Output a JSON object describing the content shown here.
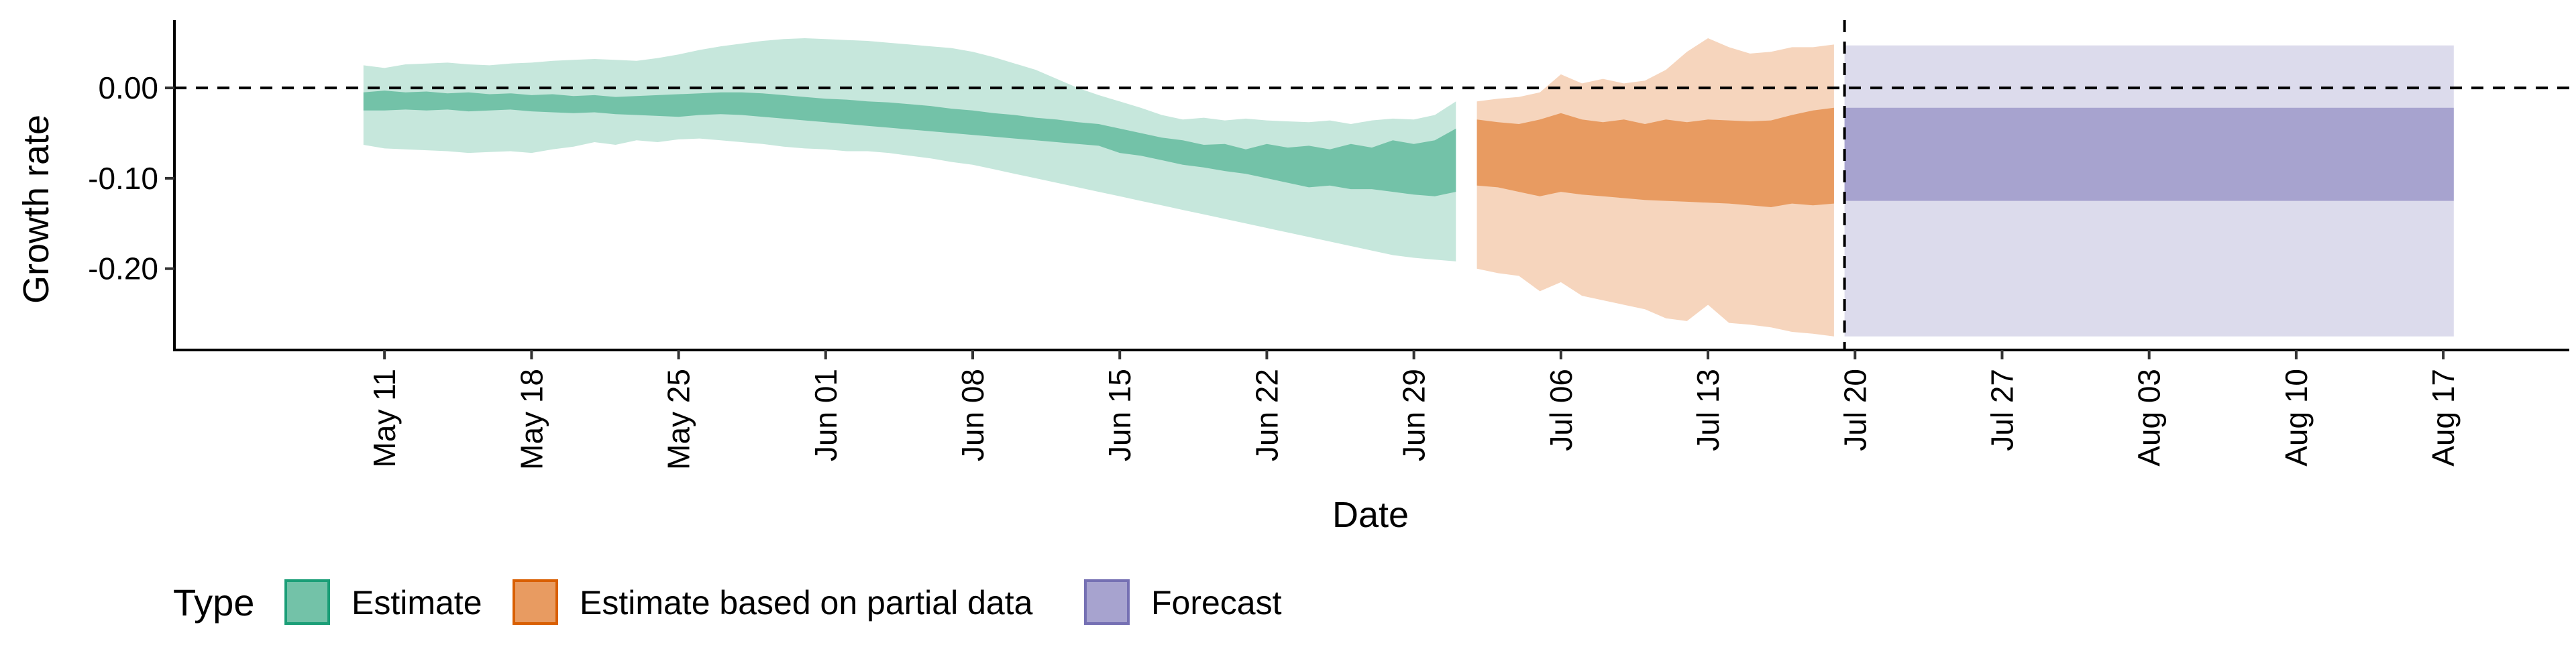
{
  "chart_data": {
    "type": "area",
    "xlabel": "Date",
    "ylabel": "Growth rate",
    "xlim": [
      "2020-05-01",
      "2020-08-23"
    ],
    "ylim": [
      -0.29,
      0.075
    ],
    "y_ticks": [
      0.0,
      -0.1,
      -0.2
    ],
    "y_tick_labels": [
      "0.00",
      "-0.10",
      "-0.20"
    ],
    "x_ticks": [
      "2020-05-11",
      "2020-05-18",
      "2020-05-25",
      "2020-06-01",
      "2020-06-08",
      "2020-06-15",
      "2020-06-22",
      "2020-06-29",
      "2020-07-06",
      "2020-07-13",
      "2020-07-20",
      "2020-07-27",
      "2020-08-03",
      "2020-08-10",
      "2020-08-17"
    ],
    "x_tick_labels": [
      "May 11",
      "May 18",
      "May 25",
      "Jun 01",
      "Jun 08",
      "Jun 15",
      "Jun 22",
      "Jun 29",
      "Jul 06",
      "Jul 13",
      "Jul 20",
      "Jul 27",
      "Aug 03",
      "Aug 10",
      "Aug 17"
    ],
    "reference_lines": {
      "horizontal_y": 0.0,
      "vertical_x": "2020-07-19"
    },
    "grid": false,
    "legend": {
      "title": "Type",
      "placement": "bottom-left",
      "items": [
        {
          "label": "Estimate",
          "fill": "#73c2a8",
          "stroke": "#1b9e77"
        },
        {
          "label": "Estimate based on partial data",
          "fill": "#e89b61",
          "stroke": "#d95f02"
        },
        {
          "label": "Forecast",
          "fill": "#a7a3cf",
          "stroke": "#7570b3"
        }
      ]
    },
    "series": [
      {
        "name": "Estimate",
        "outer_color": "#c6e7dc",
        "inner_color": "#73c2a8",
        "x": [
          "2020-05-10",
          "2020-05-11",
          "2020-05-12",
          "2020-05-13",
          "2020-05-14",
          "2020-05-15",
          "2020-05-16",
          "2020-05-17",
          "2020-05-18",
          "2020-05-19",
          "2020-05-20",
          "2020-05-21",
          "2020-05-22",
          "2020-05-23",
          "2020-05-24",
          "2020-05-25",
          "2020-05-26",
          "2020-05-27",
          "2020-05-28",
          "2020-05-29",
          "2020-05-30",
          "2020-05-31",
          "2020-06-01",
          "2020-06-02",
          "2020-06-03",
          "2020-06-04",
          "2020-06-05",
          "2020-06-06",
          "2020-06-07",
          "2020-06-08",
          "2020-06-09",
          "2020-06-10",
          "2020-06-11",
          "2020-06-12",
          "2020-06-13",
          "2020-06-14",
          "2020-06-15",
          "2020-06-16",
          "2020-06-17",
          "2020-06-18",
          "2020-06-19",
          "2020-06-20",
          "2020-06-21",
          "2020-06-22",
          "2020-06-23",
          "2020-06-24",
          "2020-06-25",
          "2020-06-26",
          "2020-06-27",
          "2020-06-28",
          "2020-06-29",
          "2020-06-30",
          "2020-07-01"
        ],
        "upper_90": [
          0.025,
          0.022,
          0.026,
          0.027,
          0.028,
          0.026,
          0.025,
          0.027,
          0.028,
          0.03,
          0.031,
          0.032,
          0.031,
          0.03,
          0.033,
          0.037,
          0.042,
          0.046,
          0.049,
          0.052,
          0.054,
          0.055,
          0.054,
          0.053,
          0.052,
          0.05,
          0.048,
          0.046,
          0.044,
          0.04,
          0.034,
          0.027,
          0.02,
          0.01,
          0.0,
          -0.008,
          -0.015,
          -0.022,
          -0.03,
          -0.035,
          -0.033,
          -0.036,
          -0.034,
          -0.036,
          -0.037,
          -0.038,
          -0.036,
          -0.04,
          -0.036,
          -0.034,
          -0.035,
          -0.03,
          -0.015
        ],
        "lower_90": [
          -0.063,
          -0.067,
          -0.068,
          -0.069,
          -0.07,
          -0.072,
          -0.071,
          -0.07,
          -0.072,
          -0.068,
          -0.065,
          -0.06,
          -0.063,
          -0.058,
          -0.06,
          -0.057,
          -0.056,
          -0.058,
          -0.06,
          -0.062,
          -0.065,
          -0.067,
          -0.068,
          -0.07,
          -0.07,
          -0.072,
          -0.075,
          -0.078,
          -0.082,
          -0.085,
          -0.09,
          -0.095,
          -0.1,
          -0.105,
          -0.11,
          -0.115,
          -0.12,
          -0.125,
          -0.13,
          -0.135,
          -0.14,
          -0.145,
          -0.15,
          -0.155,
          -0.16,
          -0.165,
          -0.17,
          -0.175,
          -0.18,
          -0.185,
          -0.188,
          -0.19,
          -0.192
        ],
        "upper_50": [
          -0.005,
          -0.003,
          -0.005,
          -0.004,
          -0.006,
          -0.005,
          -0.007,
          -0.006,
          -0.008,
          -0.007,
          -0.009,
          -0.008,
          -0.01,
          -0.009,
          -0.008,
          -0.007,
          -0.006,
          -0.005,
          -0.005,
          -0.006,
          -0.008,
          -0.01,
          -0.012,
          -0.013,
          -0.015,
          -0.016,
          -0.018,
          -0.02,
          -0.023,
          -0.025,
          -0.028,
          -0.03,
          -0.033,
          -0.035,
          -0.038,
          -0.04,
          -0.045,
          -0.05,
          -0.055,
          -0.058,
          -0.063,
          -0.062,
          -0.068,
          -0.062,
          -0.066,
          -0.064,
          -0.068,
          -0.062,
          -0.066,
          -0.058,
          -0.062,
          -0.058,
          -0.045
        ],
        "lower_50": [
          -0.025,
          -0.025,
          -0.024,
          -0.025,
          -0.024,
          -0.026,
          -0.025,
          -0.024,
          -0.026,
          -0.027,
          -0.028,
          -0.027,
          -0.029,
          -0.03,
          -0.031,
          -0.032,
          -0.03,
          -0.029,
          -0.03,
          -0.032,
          -0.034,
          -0.036,
          -0.038,
          -0.04,
          -0.042,
          -0.044,
          -0.046,
          -0.048,
          -0.05,
          -0.052,
          -0.054,
          -0.056,
          -0.058,
          -0.06,
          -0.062,
          -0.064,
          -0.072,
          -0.075,
          -0.08,
          -0.085,
          -0.088,
          -0.092,
          -0.095,
          -0.1,
          -0.105,
          -0.11,
          -0.108,
          -0.112,
          -0.112,
          -0.115,
          -0.118,
          -0.12,
          -0.115
        ]
      },
      {
        "name": "Estimate based on partial data",
        "outer_color": "#f6d5bd",
        "inner_color": "#e89b61",
        "x": [
          "2020-07-02",
          "2020-07-03",
          "2020-07-04",
          "2020-07-05",
          "2020-07-06",
          "2020-07-07",
          "2020-07-08",
          "2020-07-09",
          "2020-07-10",
          "2020-07-11",
          "2020-07-12",
          "2020-07-13",
          "2020-07-14",
          "2020-07-15",
          "2020-07-16",
          "2020-07-17",
          "2020-07-18",
          "2020-07-19"
        ],
        "upper_90": [
          -0.015,
          -0.012,
          -0.01,
          -0.005,
          0.015,
          0.005,
          0.01,
          0.005,
          0.008,
          0.02,
          0.04,
          0.055,
          0.045,
          0.038,
          0.04,
          0.045,
          0.045,
          0.048
        ],
        "lower_90": [
          -0.2,
          -0.205,
          -0.208,
          -0.225,
          -0.215,
          -0.23,
          -0.235,
          -0.24,
          -0.245,
          -0.255,
          -0.258,
          -0.24,
          -0.26,
          -0.262,
          -0.265,
          -0.27,
          -0.272,
          -0.275
        ],
        "upper_50": [
          -0.035,
          -0.038,
          -0.04,
          -0.035,
          -0.028,
          -0.035,
          -0.038,
          -0.035,
          -0.04,
          -0.035,
          -0.038,
          -0.035,
          -0.036,
          -0.037,
          -0.036,
          -0.03,
          -0.025,
          -0.022
        ],
        "lower_50": [
          -0.108,
          -0.11,
          -0.115,
          -0.12,
          -0.115,
          -0.118,
          -0.12,
          -0.122,
          -0.124,
          -0.125,
          -0.126,
          -0.127,
          -0.128,
          -0.13,
          -0.132,
          -0.128,
          -0.13,
          -0.128
        ]
      },
      {
        "name": "Forecast",
        "outer_color": "#dcdbec",
        "inner_color": "#a7a3cf",
        "x": [
          "2020-07-20",
          "2020-08-17"
        ],
        "upper_90": [
          0.047,
          0.047
        ],
        "lower_90": [
          -0.275,
          -0.275
        ],
        "upper_50": [
          -0.022,
          -0.022
        ],
        "lower_50": [
          -0.125,
          -0.125
        ]
      }
    ]
  }
}
